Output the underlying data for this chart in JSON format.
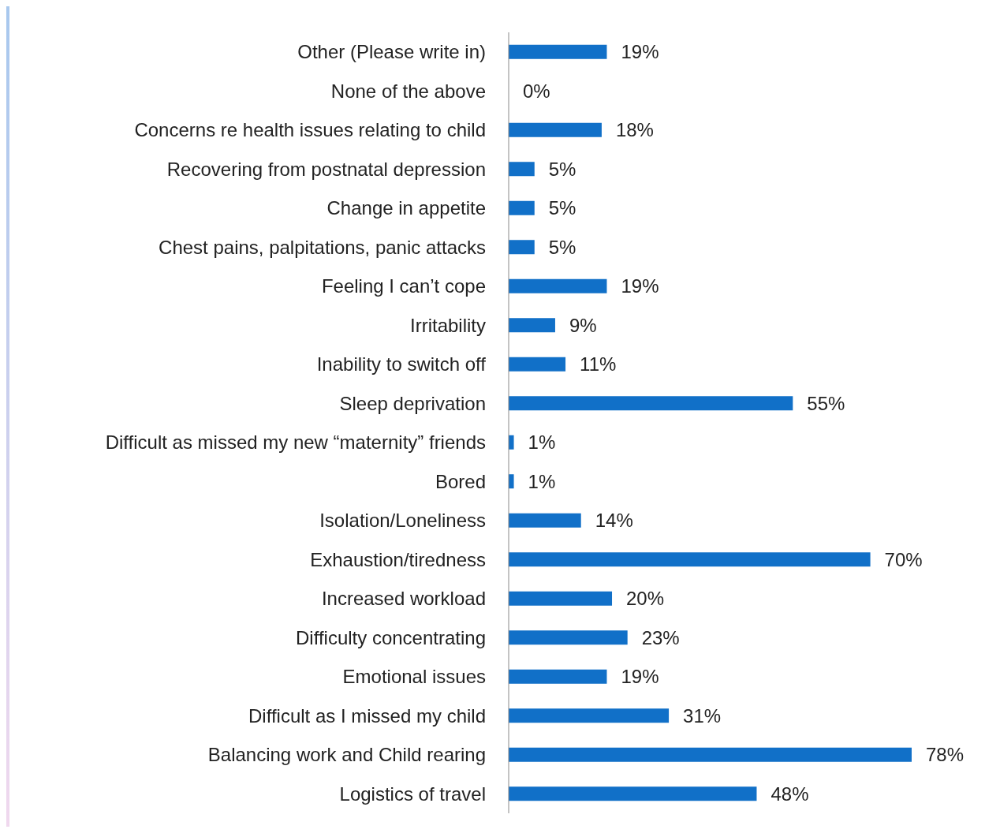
{
  "chart_data": {
    "type": "bar",
    "orientation": "horizontal",
    "categories": [
      "Other (Please write in)",
      "None of the above",
      "Concerns re health issues relating to child",
      "Recovering from postnatal depression",
      "Change in appetite",
      "Chest pains, palpitations, panic attacks",
      "Feeling I can’t cope",
      "Irritability",
      "Inability to switch off",
      "Sleep deprivation",
      "Difficult as missed my new “maternity” friends",
      "Bored",
      "Isolation/Loneliness",
      "Exhaustion/tiredness",
      "Increased workload",
      "Difficulty concentrating",
      "Emotional issues",
      "Difficult as I missed my child",
      "Balancing work and Child rearing",
      "Logistics of travel"
    ],
    "values": [
      19,
      0,
      18,
      5,
      5,
      5,
      19,
      9,
      11,
      55,
      1,
      1,
      14,
      70,
      20,
      23,
      19,
      31,
      78,
      48
    ],
    "value_labels": [
      "19%",
      "0%",
      "18%",
      "5%",
      "5%",
      "5%",
      "19%",
      "9%",
      "11%",
      "55%",
      "1%",
      "1%",
      "14%",
      "70%",
      "20%",
      "23%",
      "19%",
      "31%",
      "78%",
      "48%"
    ],
    "color": "#1170c8"
  }
}
